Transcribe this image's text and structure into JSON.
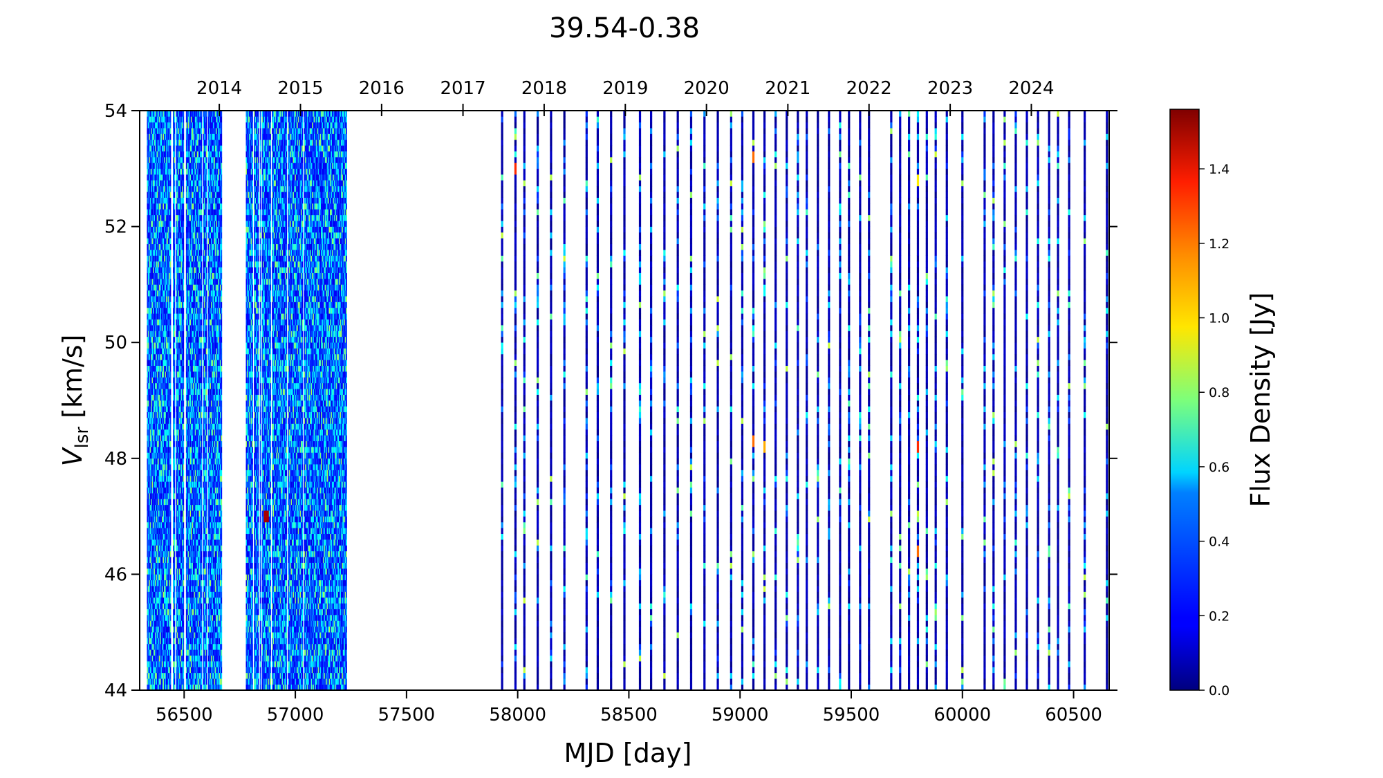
{
  "chart_data": {
    "type": "heatmap",
    "title": "39.54-0.38",
    "xlabel": "MJD [day]",
    "ylabel_main": "V",
    "ylabel_sub": "lsr",
    "ylabel_unit": " [km/s]",
    "colorbar_label": "Flux Density [Jy]",
    "colormap": "jet",
    "xlim": [
      56300,
      60660
    ],
    "ylim": [
      44,
      54
    ],
    "clim": [
      0,
      1.56
    ],
    "x_ticks": [
      56500,
      57000,
      57500,
      58000,
      58500,
      59000,
      59500,
      60000,
      60500
    ],
    "x_tick_labels": [
      "56500",
      "57000",
      "57500",
      "58000",
      "58500",
      "59000",
      "59500",
      "60000",
      "60500"
    ],
    "y_ticks": [
      44,
      46,
      48,
      50,
      52,
      54
    ],
    "y_tick_labels": [
      "44",
      "46",
      "48",
      "50",
      "52",
      "54"
    ],
    "top_axis_ticks_mjd": [
      56658,
      57023,
      57388,
      57754,
      58119,
      58484,
      58849,
      59215,
      59580,
      59945,
      60310
    ],
    "top_axis_labels": [
      "2014",
      "2015",
      "2016",
      "2017",
      "2018",
      "2019",
      "2020",
      "2021",
      "2022",
      "2023",
      "2024"
    ],
    "colorbar_ticks": [
      0.0,
      0.2,
      0.4,
      0.6,
      0.8,
      1.0,
      1.2,
      1.4
    ],
    "colorbar_tick_labels": [
      "0.0",
      "0.2",
      "0.4",
      "0.6",
      "0.8",
      "1.0",
      "1.2",
      "1.4"
    ],
    "dense_observation_ranges_mjd": [
      [
        56335,
        56670
      ],
      [
        56780,
        57230
      ]
    ],
    "sparse_observation_mjd": [
      57930,
      57990,
      58030,
      58090,
      58150,
      58210,
      58310,
      58360,
      58420,
      58480,
      58550,
      58600,
      58660,
      58720,
      58780,
      58840,
      58900,
      58960,
      59010,
      59060,
      59110,
      59160,
      59210,
      59260,
      59300,
      59350,
      59400,
      59450,
      59490,
      59540,
      59580,
      59680,
      59720,
      59760,
      59800,
      59840,
      59880,
      59930,
      60000,
      60100,
      60140,
      60190,
      60240,
      60290,
      60340,
      60390,
      60430,
      60480,
      60550,
      60650
    ],
    "notable_peaks": [
      {
        "mjd": 56870,
        "v": 47.0,
        "flux": 1.5
      },
      {
        "mjd": 57990,
        "v": 53.0,
        "flux": 1.3
      },
      {
        "mjd": 59060,
        "v": 53.2,
        "flux": 1.2
      },
      {
        "mjd": 59060,
        "v": 48.3,
        "flux": 1.2
      },
      {
        "mjd": 59110,
        "v": 48.2,
        "flux": 1.1
      },
      {
        "mjd": 59800,
        "v": 48.2,
        "flux": 1.3
      },
      {
        "mjd": 59800,
        "v": 46.4,
        "flux": 1.2
      },
      {
        "mjd": 59800,
        "v": 52.8,
        "flux": 1.0
      }
    ]
  }
}
